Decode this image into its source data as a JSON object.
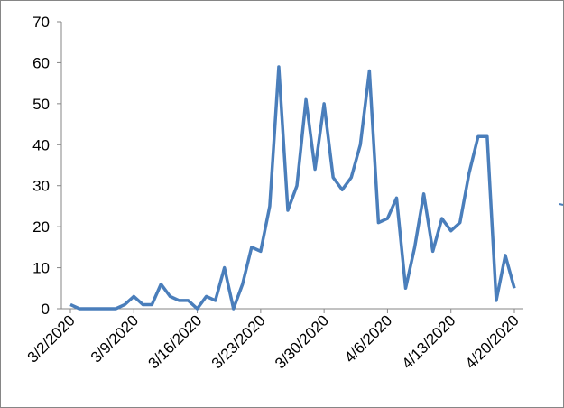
{
  "chart_data": {
    "type": "line",
    "categories": [
      "3/2/2020",
      null,
      null,
      null,
      null,
      null,
      null,
      "3/9/2020",
      null,
      null,
      null,
      null,
      null,
      null,
      "3/16/2020",
      null,
      null,
      null,
      null,
      null,
      null,
      "3/23/2020",
      null,
      null,
      null,
      null,
      null,
      null,
      "3/30/2020",
      null,
      null,
      null,
      null,
      null,
      null,
      "4/6/2020",
      null,
      null,
      null,
      null,
      null,
      null,
      "4/13/2020",
      null,
      null,
      null,
      null,
      null,
      null,
      "4/20/2020"
    ],
    "series": [
      {
        "color": "#4a7ebb",
        "values": [
          1,
          0,
          0,
          0,
          0,
          0,
          1,
          3,
          1,
          1,
          6,
          3,
          2,
          2,
          0,
          3,
          2,
          10,
          0,
          6,
          15,
          14,
          25,
          59,
          24,
          30,
          51,
          34,
          50,
          32,
          29,
          32,
          40,
          58,
          21,
          22,
          27,
          5,
          15,
          28,
          14,
          22,
          19,
          21,
          33,
          42,
          42,
          2,
          13,
          5
        ]
      }
    ],
    "ylim": [
      0,
      70
    ],
    "yticks": [
      0,
      10,
      20,
      30,
      40,
      50,
      60,
      70
    ],
    "grid": false
  }
}
